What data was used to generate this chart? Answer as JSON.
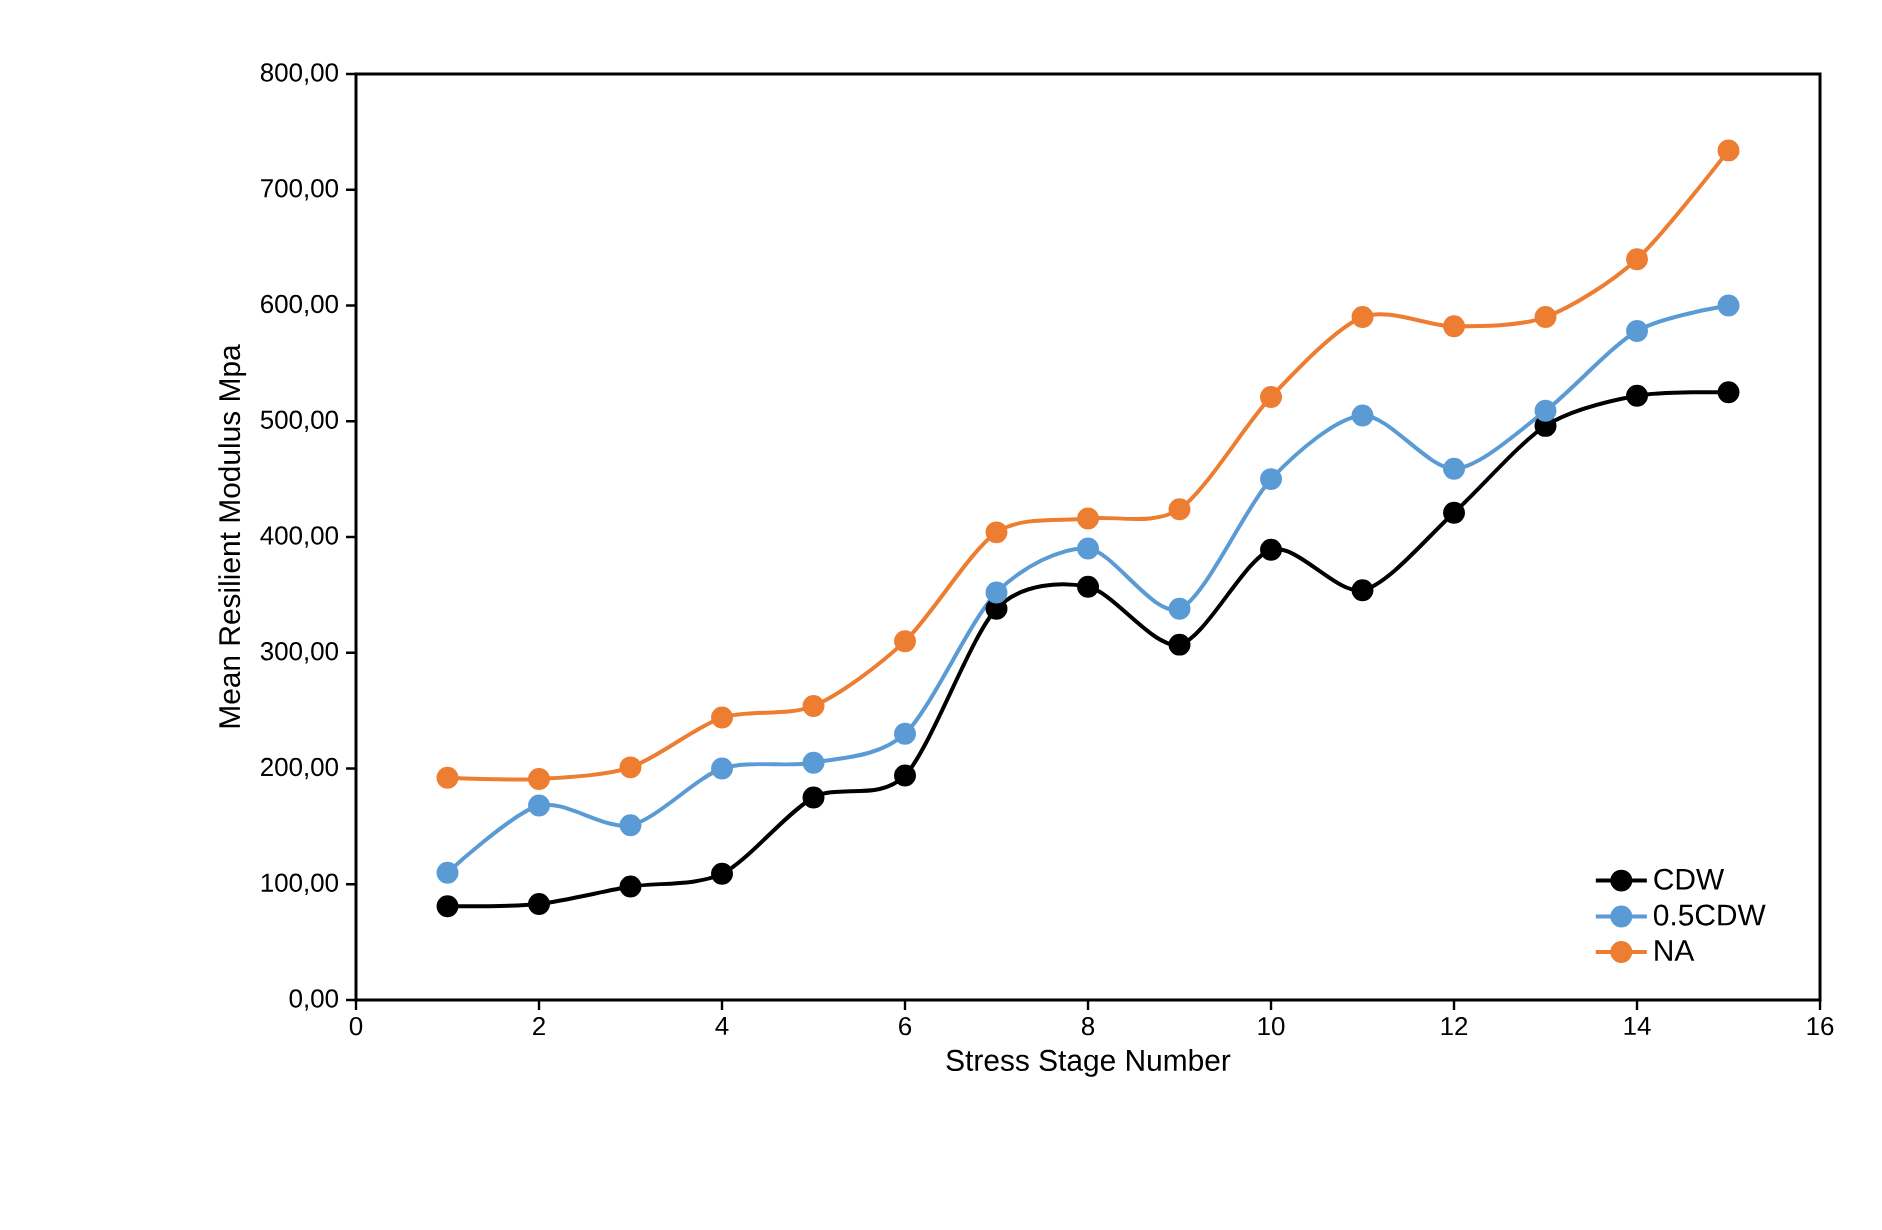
{
  "chart_data": {
    "type": "line",
    "xlabel": "Stress Stage Number",
    "ylabel": "Mean Resilient Modulus Mpa",
    "x": [
      1,
      2,
      3,
      4,
      5,
      6,
      7,
      8,
      9,
      10,
      11,
      12,
      13,
      14,
      15
    ],
    "series": [
      {
        "name": "CDW",
        "color": "#000000",
        "values": [
          81,
          83,
          98,
          109,
          175,
          194,
          338,
          357,
          307,
          389,
          354,
          421,
          496,
          522,
          525
        ]
      },
      {
        "name": "0.5CDW",
        "color": "#5b9bd5",
        "values": [
          110,
          168,
          151,
          200,
          205,
          230,
          352,
          390,
          338,
          450,
          505,
          459,
          509,
          578,
          600
        ]
      },
      {
        "name": "NA",
        "color": "#ed7d31",
        "values": [
          192,
          191,
          201,
          244,
          254,
          310,
          404,
          416,
          424,
          521,
          590,
          582,
          590,
          640,
          734
        ]
      }
    ],
    "xlim": [
      0,
      16
    ],
    "xticks": [
      0,
      2,
      4,
      6,
      8,
      10,
      12,
      14,
      16
    ],
    "ylim": [
      0,
      800
    ],
    "yticks": [
      {
        "value": 0,
        "label": "0,00"
      },
      {
        "value": 100,
        "label": "100,00"
      },
      {
        "value": 200,
        "label": "200,00"
      },
      {
        "value": 300,
        "label": "300,00"
      },
      {
        "value": 400,
        "label": "400,00"
      },
      {
        "value": 500,
        "label": "500,00"
      },
      {
        "value": 600,
        "label": "600,00"
      },
      {
        "value": 700,
        "label": "700,00"
      },
      {
        "value": 800,
        "label": "800,00"
      }
    ],
    "grid": false,
    "legend": "bottom right",
    "marker": "circle",
    "line_style": "solid"
  }
}
